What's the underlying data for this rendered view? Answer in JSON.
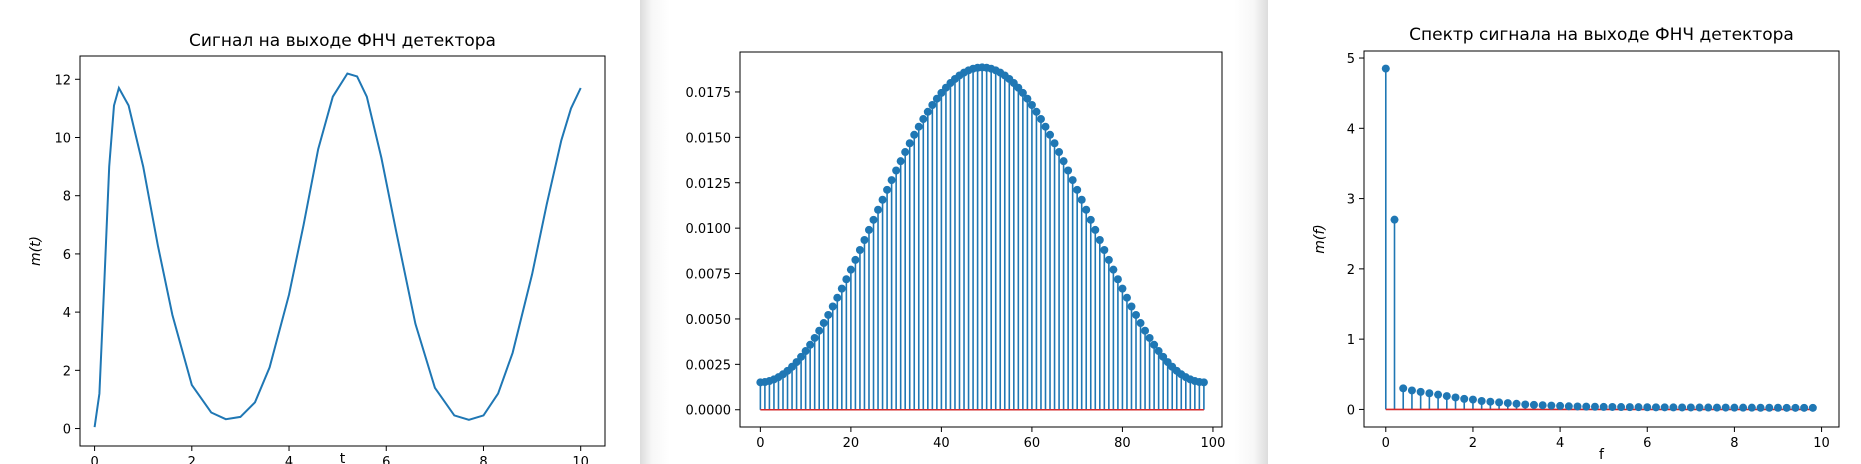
{
  "chart_data": [
    {
      "type": "line",
      "title": "Сигнал на выходе ФНЧ детектора",
      "xlabel": "t",
      "ylabel": "m(t)",
      "xlim": [
        -0.3,
        10.5
      ],
      "ylim": [
        -0.6,
        12.8
      ],
      "xticks": [
        0,
        2,
        4,
        6,
        8,
        10
      ],
      "xtick_labels": [
        "0",
        "2",
        "4",
        "6",
        "8",
        "10"
      ],
      "yticks": [
        0,
        2,
        4,
        6,
        8,
        10,
        12
      ],
      "ytick_labels": [
        "0",
        "2",
        "4",
        "6",
        "8",
        "10",
        "12"
      ],
      "series": [
        {
          "color": "#1f77b4",
          "x": [
            0,
            0.1,
            0.2,
            0.3,
            0.4,
            0.5,
            0.7,
            1.0,
            1.3,
            1.6,
            2.0,
            2.4,
            2.7,
            3.0,
            3.3,
            3.6,
            4.0,
            4.3,
            4.6,
            4.9,
            5.2,
            5.4,
            5.6,
            5.9,
            6.2,
            6.6,
            7.0,
            7.4,
            7.7,
            8.0,
            8.3,
            8.6,
            9.0,
            9.3,
            9.6,
            9.8,
            10.0
          ],
          "y": [
            0.05,
            1.2,
            5.0,
            9.0,
            11.1,
            11.7,
            11.1,
            9.0,
            6.3,
            3.9,
            1.5,
            0.55,
            0.32,
            0.4,
            0.9,
            2.1,
            4.6,
            7.0,
            9.6,
            11.4,
            12.2,
            12.1,
            11.4,
            9.3,
            6.8,
            3.6,
            1.4,
            0.45,
            0.3,
            0.45,
            1.2,
            2.6,
            5.3,
            7.7,
            9.9,
            11.0,
            11.7
          ]
        }
      ]
    },
    {
      "type": "stem",
      "title": "",
      "xlabel": "",
      "ylabel": "",
      "xlim": [
        -4.5,
        102
      ],
      "ylim": [
        -0.00095,
        0.0197
      ],
      "xticks": [
        0,
        20,
        40,
        60,
        80,
        100
      ],
      "xtick_labels": [
        "0",
        "20",
        "40",
        "60",
        "80",
        "100"
      ],
      "yticks": [
        0,
        0.0025,
        0.005,
        0.0075,
        0.01,
        0.0125,
        0.015,
        0.0175
      ],
      "ytick_labels": [
        "0.0000",
        "0.0025",
        "0.0050",
        "0.0075",
        "0.0100",
        "0.0125",
        "0.0150",
        "0.0175"
      ],
      "n_points": 99,
      "window": {
        "shape": "hamming",
        "peak": 0.01885,
        "min": 0.00151
      },
      "marker_color": "#1f77b4",
      "baseline_color": "#d62728"
    },
    {
      "type": "stem",
      "title": "Спектр сигнала на выходе ФНЧ детектора",
      "xlabel": "f",
      "ylabel": "m(f)",
      "xlim": [
        -0.5,
        10.4
      ],
      "ylim": [
        -0.25,
        5.1
      ],
      "xticks": [
        0,
        2,
        4,
        6,
        8,
        10
      ],
      "xtick_labels": [
        "0",
        "2",
        "4",
        "6",
        "8",
        "10"
      ],
      "yticks": [
        0,
        1,
        2,
        3,
        4,
        5
      ],
      "ytick_labels": [
        "0",
        "1",
        "2",
        "3",
        "4",
        "5"
      ],
      "x": [
        0.0,
        0.2,
        0.4,
        0.6,
        0.8,
        1.0,
        1.2,
        1.4,
        1.6,
        1.8,
        2.0,
        2.2,
        2.4,
        2.6,
        2.8,
        3.0,
        3.2,
        3.4,
        3.6,
        3.8,
        4.0,
        4.2,
        4.4,
        4.6,
        4.8,
        5.0,
        5.2,
        5.4,
        5.6,
        5.8,
        6.0,
        6.2,
        6.4,
        6.6,
        6.8,
        7.0,
        7.2,
        7.4,
        7.6,
        7.8,
        8.0,
        8.2,
        8.4,
        8.6,
        8.8,
        9.0,
        9.2,
        9.4,
        9.6,
        9.8
      ],
      "y": [
        4.85,
        2.7,
        0.3,
        0.27,
        0.25,
        0.23,
        0.21,
        0.19,
        0.17,
        0.15,
        0.14,
        0.12,
        0.11,
        0.1,
        0.09,
        0.08,
        0.07,
        0.065,
        0.06,
        0.055,
        0.05,
        0.045,
        0.042,
        0.04,
        0.038,
        0.036,
        0.035,
        0.034,
        0.033,
        0.032,
        0.031,
        0.03,
        0.03,
        0.029,
        0.028,
        0.028,
        0.027,
        0.027,
        0.026,
        0.026,
        0.025,
        0.025,
        0.025,
        0.024,
        0.024,
        0.024,
        0.023,
        0.023,
        0.023,
        0.023
      ],
      "marker_color": "#1f77b4",
      "baseline_color": "#d62728"
    }
  ]
}
